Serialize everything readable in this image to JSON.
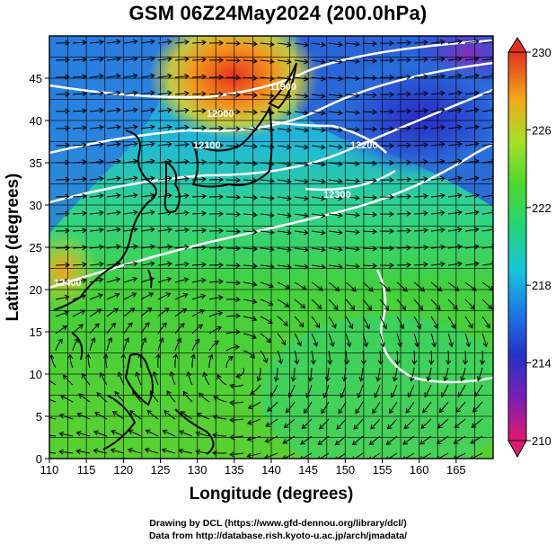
{
  "title": "GSM 06Z24May2024 (200.0hPa)",
  "x_axis": {
    "label": "Longitude (degrees)",
    "min": 110,
    "max": 170,
    "ticks": [
      110,
      115,
      120,
      125,
      130,
      135,
      140,
      145,
      150,
      155,
      160,
      165
    ]
  },
  "y_axis": {
    "label": "Latitude  (degrees)",
    "min": 0,
    "max": 50,
    "ticks": [
      0,
      5,
      10,
      15,
      20,
      25,
      30,
      35,
      40,
      45
    ]
  },
  "colorbar": {
    "min": 210,
    "max": 230,
    "tick_labels": [
      "230",
      "226",
      "222",
      "218",
      "214",
      "210"
    ],
    "colors": [
      "#e01a6e",
      "#6a1fb0",
      "#2238c8",
      "#1d8ee8",
      "#18d6c2",
      "#2ed04a",
      "#9ee02a",
      "#f0d020",
      "#f58a18",
      "#e23a20"
    ]
  },
  "contour_labels": [
    "12100",
    "12000",
    "11900",
    "12200",
    "12300",
    "12400"
  ],
  "footer": {
    "line1": "Drawing by DCL (https://www.gfd-dennou.org/library/dcl/)",
    "line2": "Data from http://database.rish.kyoto-u.ac.jp/arch/jmadata/"
  },
  "chart_data": {
    "type": "map",
    "variable": "temperature",
    "level": "200.0hPa",
    "scale_range": [
      210,
      230
    ]
  }
}
